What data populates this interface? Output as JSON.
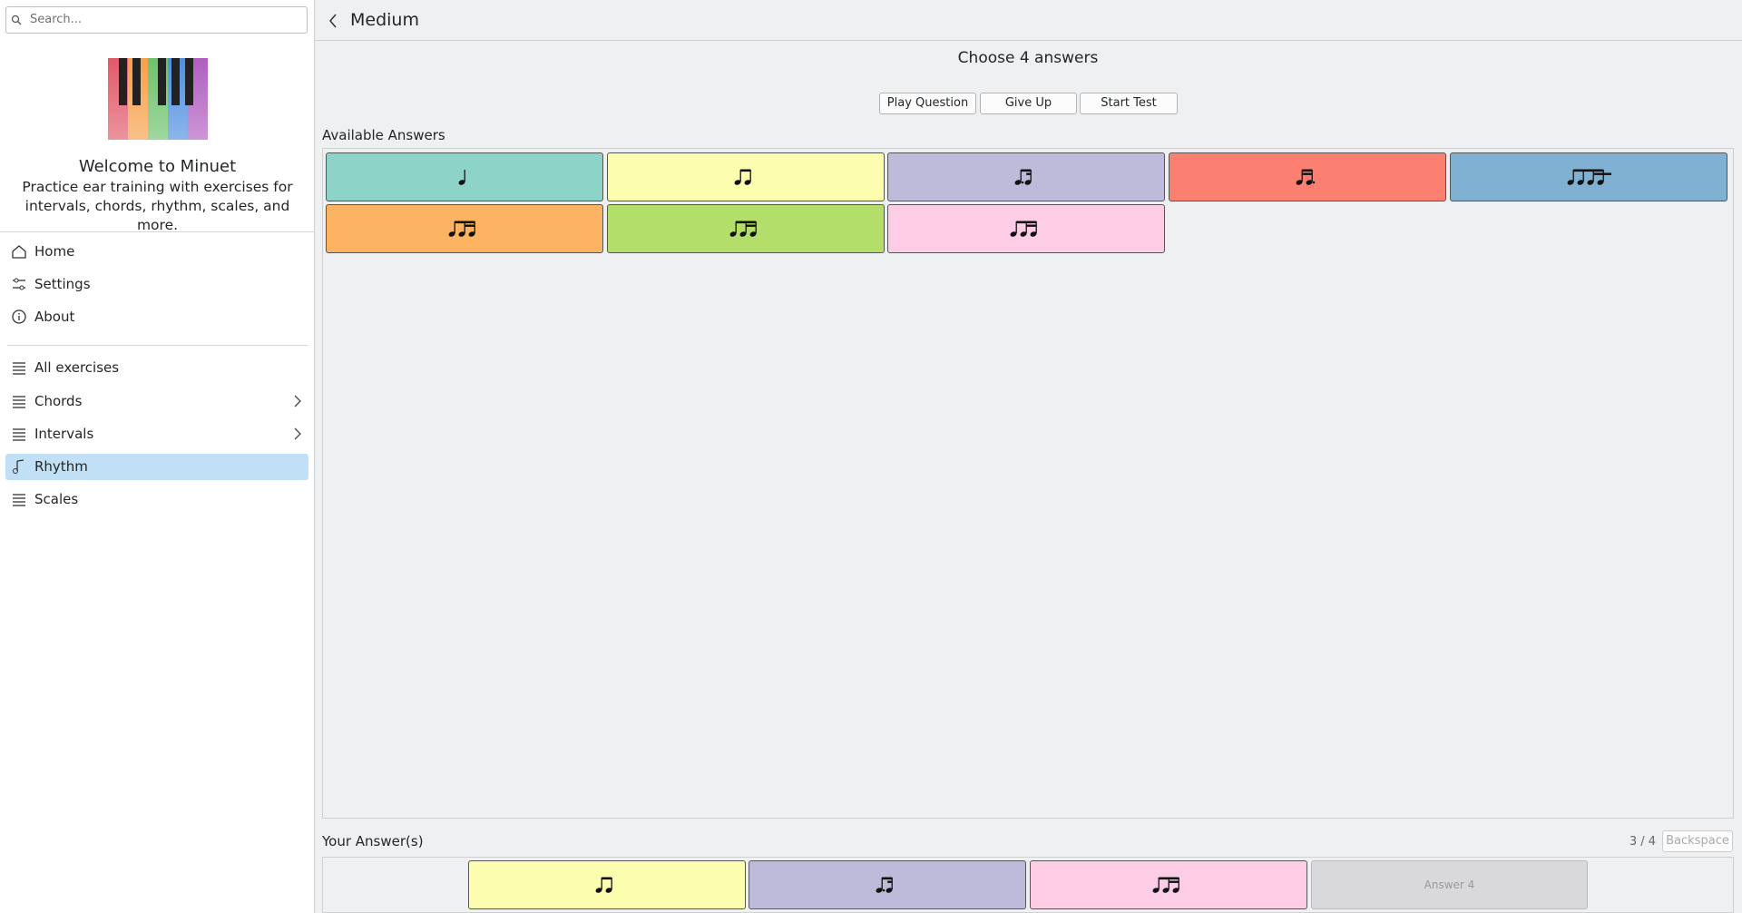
{
  "search": {
    "placeholder": "Search..."
  },
  "sidebar": {
    "title": "Welcome to Minuet",
    "description": "Practice ear training with exercises for intervals, chords, rhythm, scales, and more.",
    "nav": [
      "Home",
      "Settings",
      "About"
    ],
    "exercises": [
      "All exercises",
      "Chords",
      "Intervals",
      "Rhythm",
      "Scales"
    ]
  },
  "header": {
    "title": "Medium"
  },
  "prompt": "Choose 4 answers",
  "buttons": [
    "Play Question",
    "Give Up",
    "Start Test"
  ],
  "available_answers_label": "Available Answers",
  "your_answers_label": "Your Answer(s)",
  "progress": "3 / 4",
  "backspace": "Backspace",
  "answer_placeholder": "Answer 4"
}
